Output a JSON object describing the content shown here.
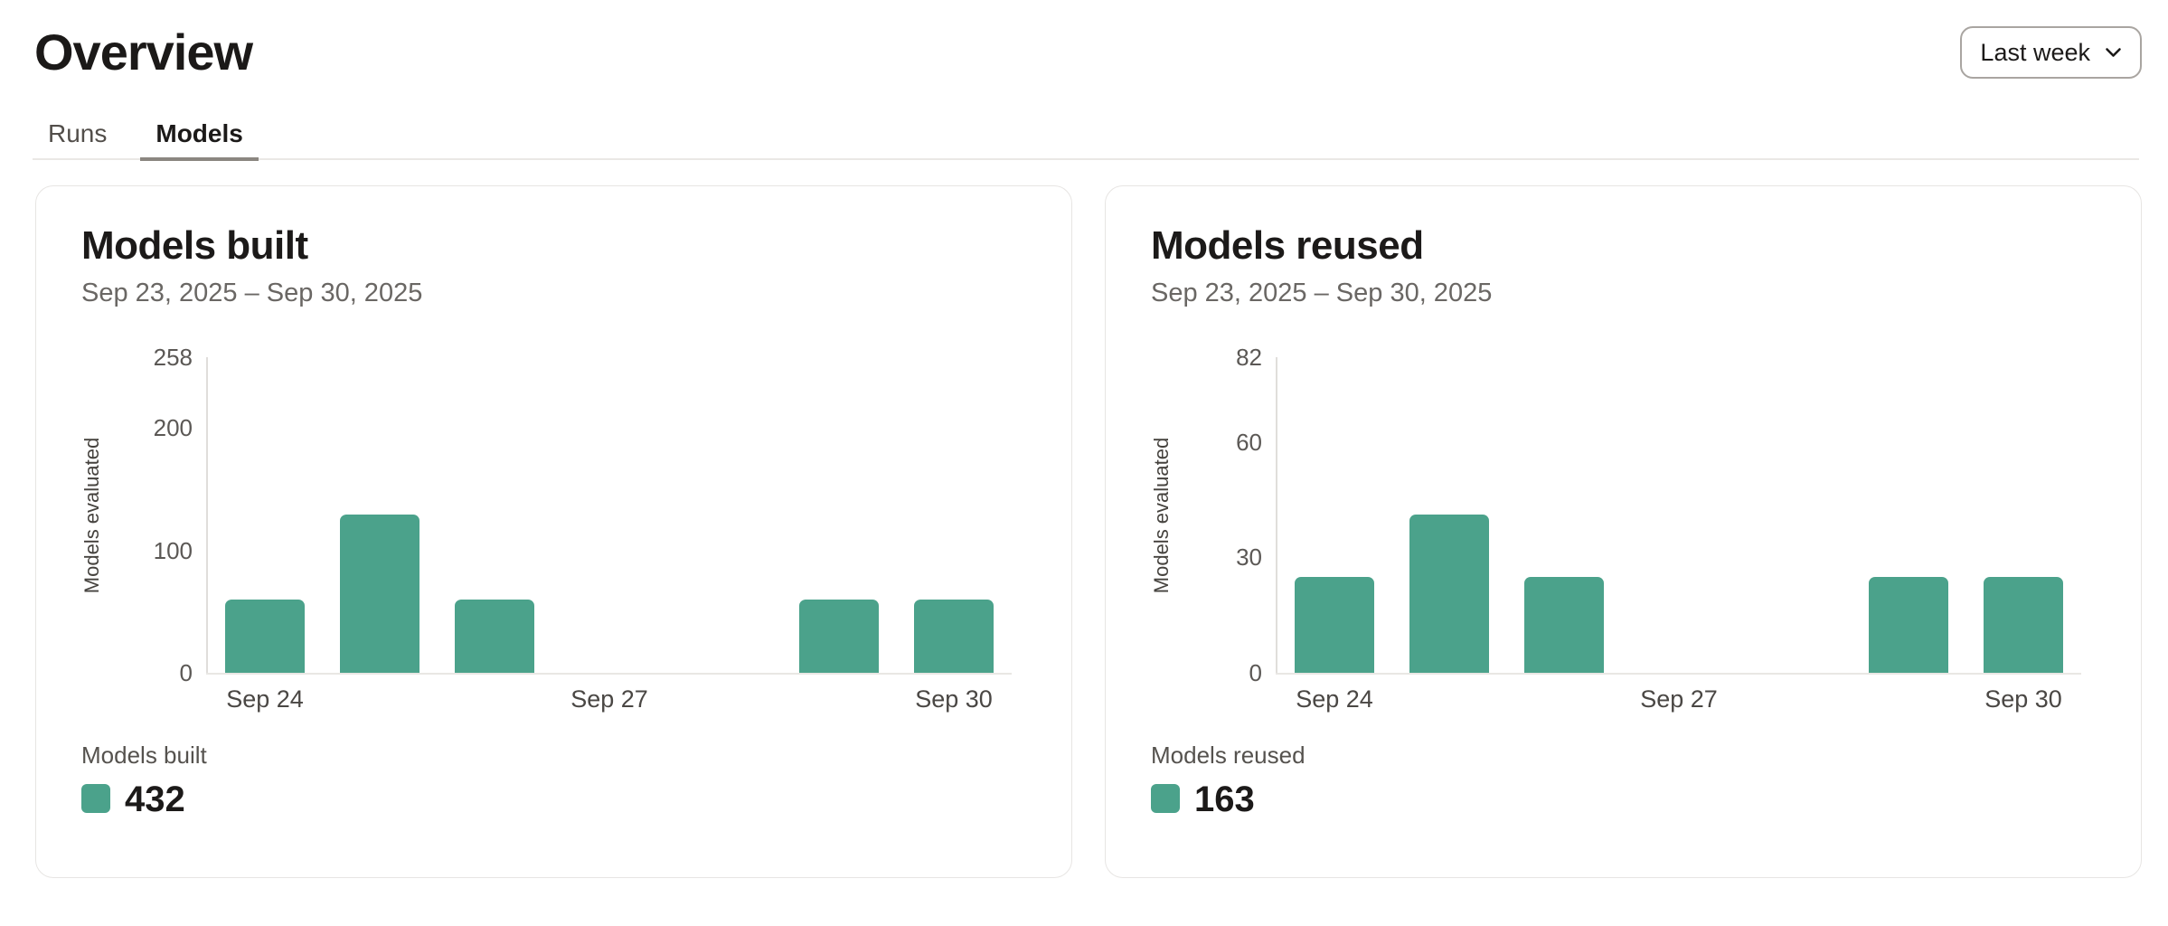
{
  "header": {
    "title": "Overview",
    "range_selector": {
      "label": "Last week"
    }
  },
  "tabs": [
    {
      "label": "Runs",
      "active": false
    },
    {
      "label": "Models",
      "active": true
    }
  ],
  "colors": {
    "bar": "#4BA28B",
    "tab_underline": "#8B8680",
    "card_border": "#E7E5E3"
  },
  "chart_data": [
    {
      "type": "bar",
      "title": "Models built",
      "subtitle": "Sep 23, 2025 – Sep 30, 2025",
      "ylabel": "Models evaluated",
      "categories": [
        "Sep 24",
        "Sep 25",
        "Sep 26",
        "Sep 27",
        "Sep 28",
        "Sep 29",
        "Sep 30"
      ],
      "values": [
        60,
        129,
        60,
        0,
        0,
        60,
        60
      ],
      "y_ticks": [
        0,
        100,
        200,
        258
      ],
      "ylim": [
        0,
        258
      ],
      "x_ticks": [
        {
          "index": 0,
          "label": "Sep 24"
        },
        {
          "index": 3,
          "label": "Sep 27"
        },
        {
          "index": 6,
          "label": "Sep 30"
        }
      ],
      "grid": false,
      "bar_color": "#4BA28B",
      "legend": {
        "label": "Models built",
        "total": "432",
        "position": "bottom-left"
      }
    },
    {
      "type": "bar",
      "title": "Models reused",
      "subtitle": "Sep 23, 2025 – Sep 30, 2025",
      "ylabel": "Models evaluated",
      "categories": [
        "Sep 24",
        "Sep 25",
        "Sep 26",
        "Sep 27",
        "Sep 28",
        "Sep 29",
        "Sep 30"
      ],
      "values": [
        25,
        41,
        25,
        0,
        0,
        25,
        25
      ],
      "y_ticks": [
        0,
        30,
        60,
        82
      ],
      "ylim": [
        0,
        82
      ],
      "x_ticks": [
        {
          "index": 0,
          "label": "Sep 24"
        },
        {
          "index": 3,
          "label": "Sep 27"
        },
        {
          "index": 6,
          "label": "Sep 30"
        }
      ],
      "grid": false,
      "bar_color": "#4BA28B",
      "legend": {
        "label": "Models reused",
        "total": "163",
        "position": "bottom-left"
      }
    }
  ]
}
